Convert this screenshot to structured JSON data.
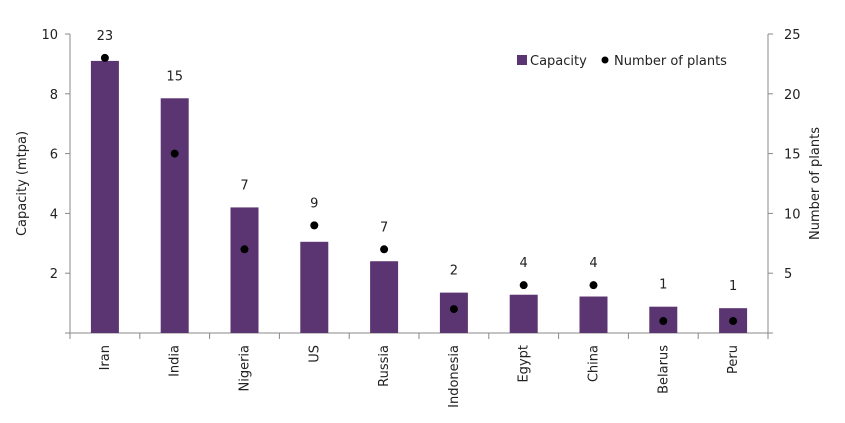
{
  "chart_data": {
    "type": "bar",
    "categories": [
      "Iran",
      "India",
      "Nigeria",
      "US",
      "Russia",
      "Indonesia",
      "Egypt",
      "China",
      "Belarus",
      "Peru"
    ],
    "series": [
      {
        "name": "Capacity",
        "type": "bar",
        "axis": "left",
        "color": "#5b3472",
        "values": [
          9.1,
          7.85,
          4.2,
          3.05,
          2.4,
          1.35,
          1.28,
          1.22,
          0.88,
          0.83
        ]
      },
      {
        "name": "Number of plants",
        "type": "scatter",
        "axis": "right",
        "color": "#000000",
        "values": [
          23,
          15,
          7,
          9,
          7,
          2,
          4,
          4,
          1,
          1
        ]
      }
    ],
    "ylabel": "Capacity (mtpa)",
    "ylabel_right": "Number of plants",
    "ylim": [
      0,
      10
    ],
    "ylim_right": [
      0,
      25
    ],
    "yticks": [
      "2",
      "4",
      "6",
      "8",
      "10"
    ],
    "yticks_right": [
      "5",
      "10",
      "15",
      "20",
      "25"
    ],
    "data_labels": [
      "23",
      "15",
      "7",
      "9",
      "7",
      "2",
      "4",
      "4",
      "1",
      "1"
    ],
    "legend_position": "top-right",
    "grid": false
  }
}
